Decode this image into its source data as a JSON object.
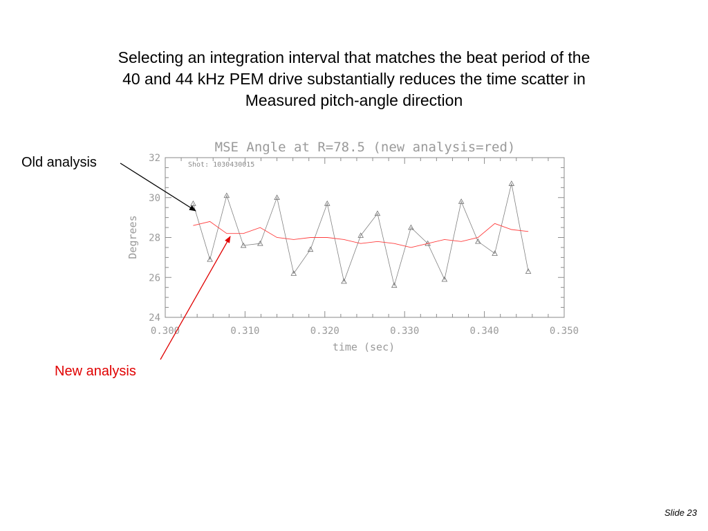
{
  "slide": {
    "headline_lines": [
      "Selecting an integration interval that matches the beat period of the",
      "40 and 44 kHz PEM drive substantially reduces the time scatter in",
      "Measured pitch-angle direction"
    ],
    "slide_number": "Slide 23"
  },
  "callouts": {
    "old": "Old analysis",
    "new": "New analysis"
  },
  "colors": {
    "old_series": "#808080",
    "new_series": "#ff3b3b",
    "axis": "#8a8a8a",
    "new_callout": "#e00000",
    "old_arrow": "#000000"
  },
  "chart_data": {
    "type": "line",
    "title": "MSE Angle at R=78.5 (new analysis=red)",
    "annotation": "Shot: 1030430015",
    "xlabel": "time (sec)",
    "ylabel": "Degrees",
    "xlim": [
      0.3,
      0.35
    ],
    "ylim": [
      24,
      32
    ],
    "xticks": [
      0.3,
      0.31,
      0.32,
      0.33,
      0.34,
      0.35
    ],
    "xtick_labels": [
      "0.300",
      "0.310",
      "0.320",
      "0.330",
      "0.340",
      "0.350"
    ],
    "yticks": [
      24,
      26,
      28,
      30,
      32
    ],
    "ytick_labels": [
      "24",
      "26",
      "28",
      "30",
      "32"
    ],
    "grid": false,
    "series": [
      {
        "key": "old",
        "marker": "triangle",
        "x": [
          0.3035,
          0.3056,
          0.3077,
          0.3098,
          0.3119,
          0.314,
          0.3161,
          0.3182,
          0.3203,
          0.3224,
          0.3245,
          0.3266,
          0.3287,
          0.3308,
          0.3329,
          0.335,
          0.3371,
          0.3392,
          0.3413,
          0.3434,
          0.3455
        ],
        "y": [
          29.7,
          26.9,
          30.1,
          27.6,
          27.7,
          30.0,
          26.2,
          27.4,
          29.7,
          25.8,
          28.1,
          29.2,
          25.6,
          28.5,
          27.7,
          25.9,
          29.8,
          27.8,
          27.2,
          30.7,
          26.3
        ]
      },
      {
        "key": "new",
        "marker": "none",
        "x": [
          0.3035,
          0.3056,
          0.3077,
          0.3098,
          0.3119,
          0.314,
          0.3161,
          0.3182,
          0.3203,
          0.3224,
          0.3245,
          0.3266,
          0.3287,
          0.3308,
          0.3329,
          0.335,
          0.3371,
          0.3392,
          0.3413,
          0.3434,
          0.3455
        ],
        "y": [
          28.6,
          28.8,
          28.2,
          28.2,
          28.5,
          28.0,
          27.9,
          28.0,
          28.0,
          27.9,
          27.7,
          27.8,
          27.7,
          27.5,
          27.7,
          27.9,
          27.8,
          28.0,
          28.7,
          28.4,
          28.3
        ]
      }
    ]
  }
}
